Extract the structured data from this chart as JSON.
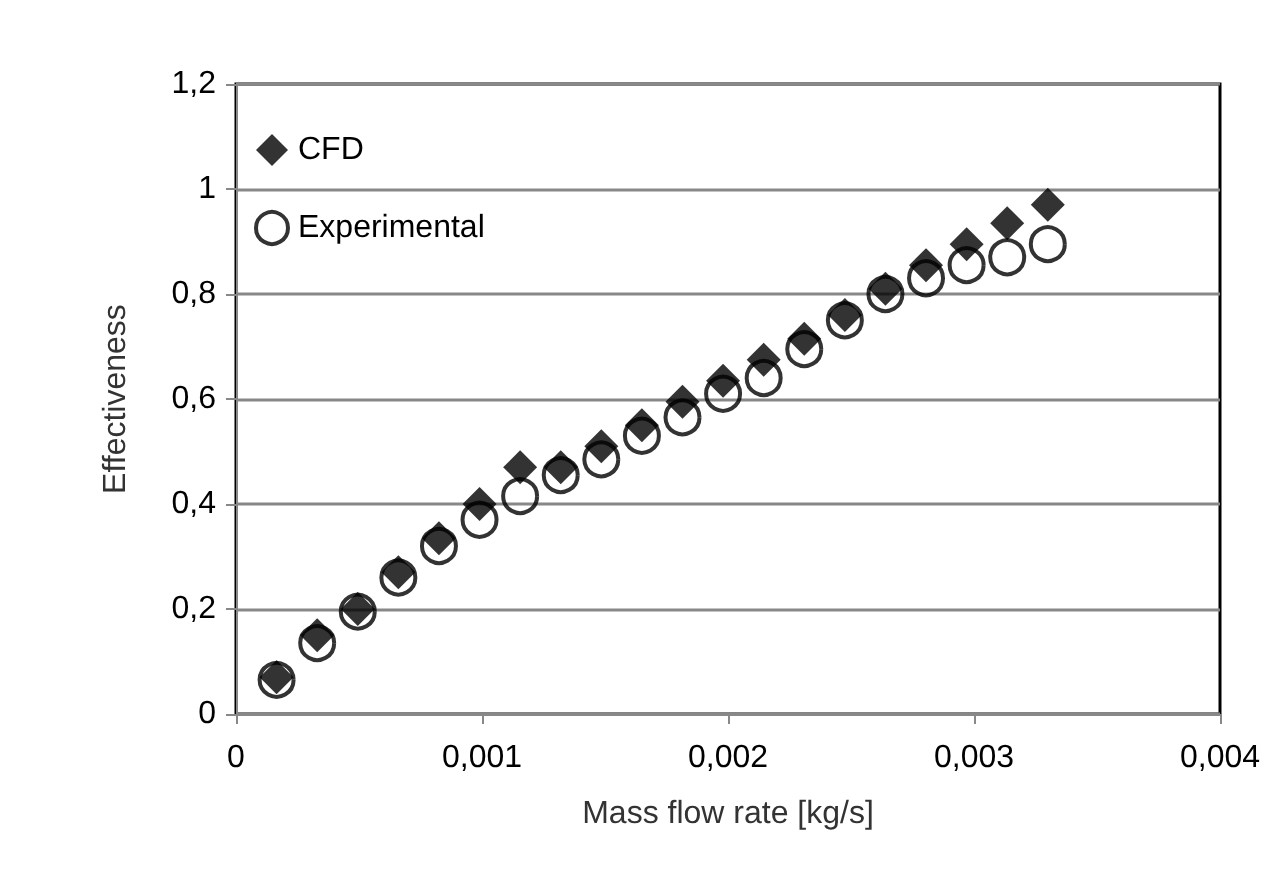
{
  "chart_data": {
    "type": "scatter",
    "xlabel": "Mass flow rate [kg/s]",
    "ylabel": "Effectiveness",
    "x": [
      0.000165,
      0.00033,
      0.000495,
      0.00066,
      0.000825,
      0.00099,
      0.001155,
      0.00132,
      0.001485,
      0.00165,
      0.001815,
      0.00198,
      0.002145,
      0.00231,
      0.002475,
      0.00264,
      0.002805,
      0.00297,
      0.003135,
      0.0033
    ],
    "series": [
      {
        "name": "CFD",
        "color": "#000000",
        "marker": "diamond",
        "values": [
          0.07,
          0.15,
          0.2,
          0.27,
          0.335,
          0.4,
          0.47,
          0.47,
          0.51,
          0.55,
          0.595,
          0.635,
          0.675,
          0.715,
          0.76,
          0.81,
          0.855,
          0.895,
          0.935,
          0.97
        ]
      },
      {
        "name": "Experimental",
        "color": "#000000",
        "marker": "circle",
        "values": [
          0.065,
          0.135,
          0.195,
          0.26,
          0.32,
          0.37,
          0.415,
          0.455,
          0.485,
          0.53,
          0.565,
          0.61,
          0.64,
          0.695,
          0.75,
          0.8,
          0.83,
          0.855,
          0.87,
          0.895
        ]
      }
    ],
    "xlim": [
      0,
      0.004
    ],
    "xticks": [
      0,
      {
        "value": 0.001,
        "label": "0,001"
      },
      {
        "value": 0.002,
        "label": "0,002"
      },
      {
        "value": 0.003,
        "label": "0,003"
      },
      {
        "value": 0.004,
        "label": "0,004"
      }
    ],
    "ylim": [
      0,
      1.2
    ],
    "yticks": [
      0,
      {
        "value": 0.2,
        "label": "0,2"
      },
      {
        "value": 0.4,
        "label": "0,4"
      },
      {
        "value": 0.6,
        "label": "0,6"
      },
      {
        "value": 0.8,
        "label": "0,8"
      },
      1,
      {
        "value": 1.2,
        "label": "1,2"
      }
    ],
    "grid": "y",
    "legend": "top left"
  }
}
